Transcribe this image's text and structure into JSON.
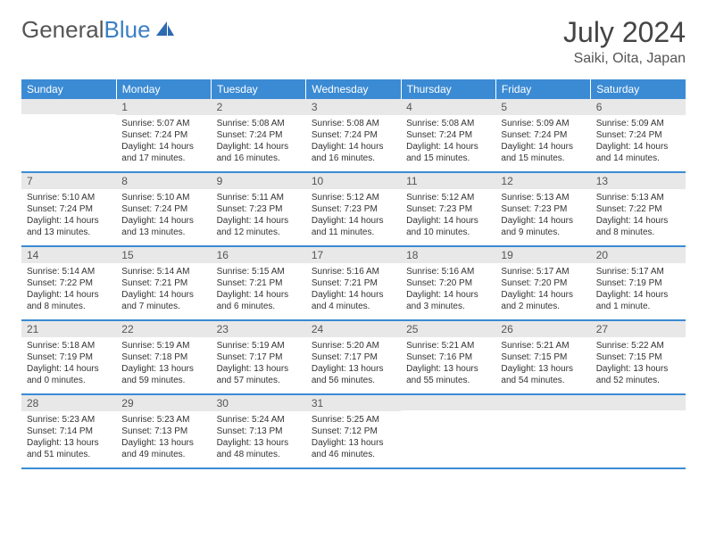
{
  "brand": {
    "part1": "General",
    "part2": "Blue"
  },
  "title": "July 2024",
  "location": "Saiki, Oita, Japan",
  "colors": {
    "header_bg": "#3b8bd4",
    "header_text": "#ffffff",
    "daynum_bg": "#e8e8e8",
    "daynum_text": "#555555",
    "body_text": "#333333",
    "row_border": "#3b8bd4",
    "logo_accent": "#2e6bb0"
  },
  "weekdays": [
    "Sunday",
    "Monday",
    "Tuesday",
    "Wednesday",
    "Thursday",
    "Friday",
    "Saturday"
  ],
  "firstDayOffset": 1,
  "days": [
    {
      "n": 1,
      "sunrise": "5:07 AM",
      "sunset": "7:24 PM",
      "daylight": "14 hours and 17 minutes."
    },
    {
      "n": 2,
      "sunrise": "5:08 AM",
      "sunset": "7:24 PM",
      "daylight": "14 hours and 16 minutes."
    },
    {
      "n": 3,
      "sunrise": "5:08 AM",
      "sunset": "7:24 PM",
      "daylight": "14 hours and 16 minutes."
    },
    {
      "n": 4,
      "sunrise": "5:08 AM",
      "sunset": "7:24 PM",
      "daylight": "14 hours and 15 minutes."
    },
    {
      "n": 5,
      "sunrise": "5:09 AM",
      "sunset": "7:24 PM",
      "daylight": "14 hours and 15 minutes."
    },
    {
      "n": 6,
      "sunrise": "5:09 AM",
      "sunset": "7:24 PM",
      "daylight": "14 hours and 14 minutes."
    },
    {
      "n": 7,
      "sunrise": "5:10 AM",
      "sunset": "7:24 PM",
      "daylight": "14 hours and 13 minutes."
    },
    {
      "n": 8,
      "sunrise": "5:10 AM",
      "sunset": "7:24 PM",
      "daylight": "14 hours and 13 minutes."
    },
    {
      "n": 9,
      "sunrise": "5:11 AM",
      "sunset": "7:23 PM",
      "daylight": "14 hours and 12 minutes."
    },
    {
      "n": 10,
      "sunrise": "5:12 AM",
      "sunset": "7:23 PM",
      "daylight": "14 hours and 11 minutes."
    },
    {
      "n": 11,
      "sunrise": "5:12 AM",
      "sunset": "7:23 PM",
      "daylight": "14 hours and 10 minutes."
    },
    {
      "n": 12,
      "sunrise": "5:13 AM",
      "sunset": "7:23 PM",
      "daylight": "14 hours and 9 minutes."
    },
    {
      "n": 13,
      "sunrise": "5:13 AM",
      "sunset": "7:22 PM",
      "daylight": "14 hours and 8 minutes."
    },
    {
      "n": 14,
      "sunrise": "5:14 AM",
      "sunset": "7:22 PM",
      "daylight": "14 hours and 8 minutes."
    },
    {
      "n": 15,
      "sunrise": "5:14 AM",
      "sunset": "7:21 PM",
      "daylight": "14 hours and 7 minutes."
    },
    {
      "n": 16,
      "sunrise": "5:15 AM",
      "sunset": "7:21 PM",
      "daylight": "14 hours and 6 minutes."
    },
    {
      "n": 17,
      "sunrise": "5:16 AM",
      "sunset": "7:21 PM",
      "daylight": "14 hours and 4 minutes."
    },
    {
      "n": 18,
      "sunrise": "5:16 AM",
      "sunset": "7:20 PM",
      "daylight": "14 hours and 3 minutes."
    },
    {
      "n": 19,
      "sunrise": "5:17 AM",
      "sunset": "7:20 PM",
      "daylight": "14 hours and 2 minutes."
    },
    {
      "n": 20,
      "sunrise": "5:17 AM",
      "sunset": "7:19 PM",
      "daylight": "14 hours and 1 minute."
    },
    {
      "n": 21,
      "sunrise": "5:18 AM",
      "sunset": "7:19 PM",
      "daylight": "14 hours and 0 minutes."
    },
    {
      "n": 22,
      "sunrise": "5:19 AM",
      "sunset": "7:18 PM",
      "daylight": "13 hours and 59 minutes."
    },
    {
      "n": 23,
      "sunrise": "5:19 AM",
      "sunset": "7:17 PM",
      "daylight": "13 hours and 57 minutes."
    },
    {
      "n": 24,
      "sunrise": "5:20 AM",
      "sunset": "7:17 PM",
      "daylight": "13 hours and 56 minutes."
    },
    {
      "n": 25,
      "sunrise": "5:21 AM",
      "sunset": "7:16 PM",
      "daylight": "13 hours and 55 minutes."
    },
    {
      "n": 26,
      "sunrise": "5:21 AM",
      "sunset": "7:15 PM",
      "daylight": "13 hours and 54 minutes."
    },
    {
      "n": 27,
      "sunrise": "5:22 AM",
      "sunset": "7:15 PM",
      "daylight": "13 hours and 52 minutes."
    },
    {
      "n": 28,
      "sunrise": "5:23 AM",
      "sunset": "7:14 PM",
      "daylight": "13 hours and 51 minutes."
    },
    {
      "n": 29,
      "sunrise": "5:23 AM",
      "sunset": "7:13 PM",
      "daylight": "13 hours and 49 minutes."
    },
    {
      "n": 30,
      "sunrise": "5:24 AM",
      "sunset": "7:13 PM",
      "daylight": "13 hours and 48 minutes."
    },
    {
      "n": 31,
      "sunrise": "5:25 AM",
      "sunset": "7:12 PM",
      "daylight": "13 hours and 46 minutes."
    }
  ],
  "labels": {
    "sunrise": "Sunrise:",
    "sunset": "Sunset:",
    "daylight": "Daylight:"
  }
}
